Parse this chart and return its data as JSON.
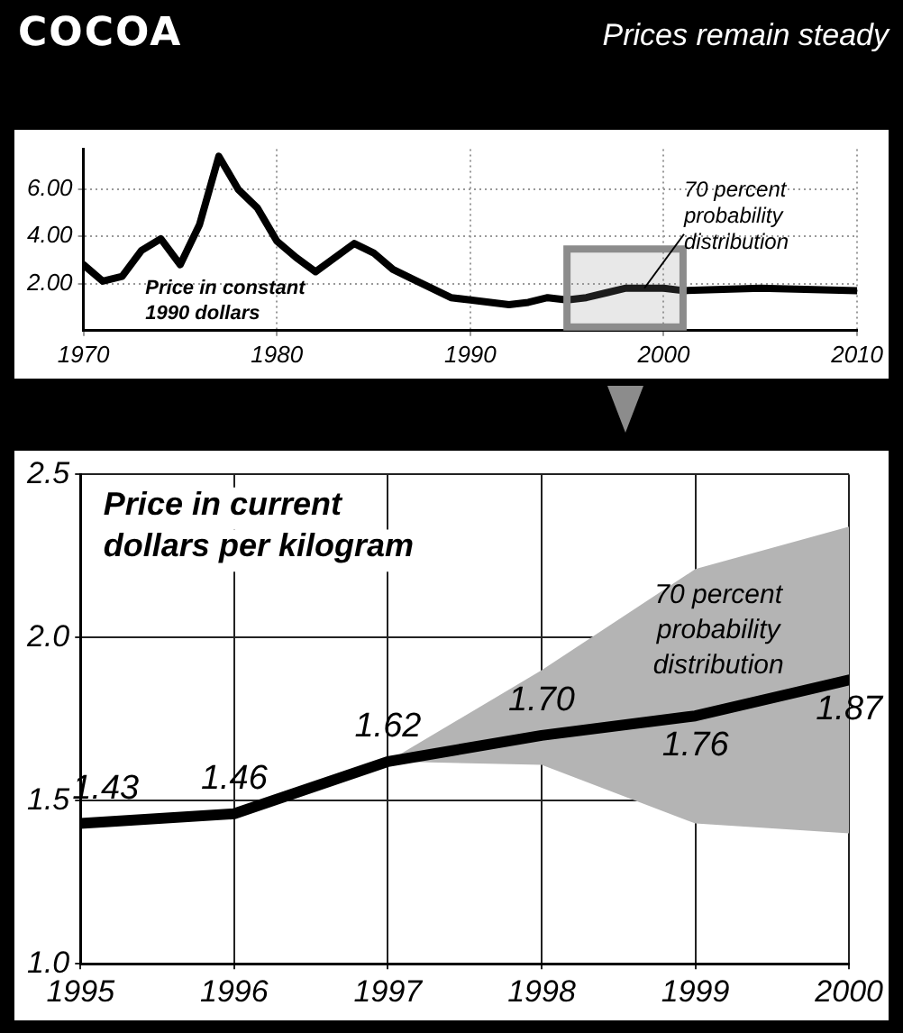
{
  "chart_data": [
    {
      "type": "line",
      "title": "COCOA",
      "subtitle": "Prices remain steady",
      "x": [
        1970,
        1971,
        1972,
        1973,
        1974,
        1975,
        1976,
        1977,
        1978,
        1979,
        1980,
        1981,
        1982,
        1984,
        1985,
        1986,
        1987,
        1989,
        1990,
        1992,
        1993,
        1994,
        1995,
        1996,
        1997,
        1998,
        2000,
        2001,
        2005,
        2010
      ],
      "series": [
        {
          "color": "#000000",
          "values": [
            2.8,
            2.1,
            2.3,
            3.4,
            3.9,
            2.8,
            4.5,
            7.4,
            6.0,
            5.2,
            3.8,
            3.1,
            2.5,
            3.7,
            3.3,
            2.6,
            2.2,
            1.4,
            1.3,
            1.1,
            1.2,
            1.4,
            1.3,
            1.4,
            1.6,
            1.8,
            1.8,
            1.7,
            1.8,
            1.7
          ]
        }
      ],
      "xlim": [
        1970,
        2010
      ],
      "xticks": [
        1970,
        1980,
        1990,
        2000,
        2010
      ],
      "ylim": [
        0,
        7.7
      ],
      "yticks": [
        {
          "value": 2,
          "label": "2.00"
        },
        {
          "value": 4,
          "label": "4.00"
        },
        {
          "value": 6,
          "label": "6.00"
        }
      ],
      "grid": true,
      "bands": [
        {
          "axis": "x",
          "from": 1995,
          "to": 2001,
          "color": "#8c8c8c"
        }
      ],
      "annotations": [
        "Price in constant 1990 dollars",
        {
          "text": "70 percent probability distribution",
          "x": 1999,
          "y": 1.8
        }
      ]
    },
    {
      "type": "line",
      "x": [
        1995,
        1996,
        1997,
        1998,
        1999,
        2000
      ],
      "series": [
        {
          "color": "#000000",
          "values": [
            1.43,
            1.46,
            1.62,
            1.7,
            1.76,
            1.87
          ],
          "lower": [
            null,
            null,
            1.62,
            1.61,
            1.43,
            1.4
          ],
          "upper": [
            null,
            null,
            1.62,
            1.9,
            2.21,
            2.34
          ],
          "value_labels": [
            "1.43",
            "1.46",
            "1.62",
            "1.70",
            "1.76",
            "1.87"
          ]
        }
      ],
      "xlim": [
        1995,
        2000
      ],
      "xticks": [
        1995,
        1996,
        1997,
        1998,
        1999,
        2000
      ],
      "ylim": [
        1.0,
        2.5
      ],
      "yticks": [
        {
          "value": 1,
          "label": "1.0"
        },
        1.5,
        {
          "value": 2,
          "label": "2.0"
        },
        2.5
      ],
      "grid": true,
      "annotations": [
        "Price in current dollars per kilogram",
        "70 percent probability distribution"
      ]
    }
  ]
}
